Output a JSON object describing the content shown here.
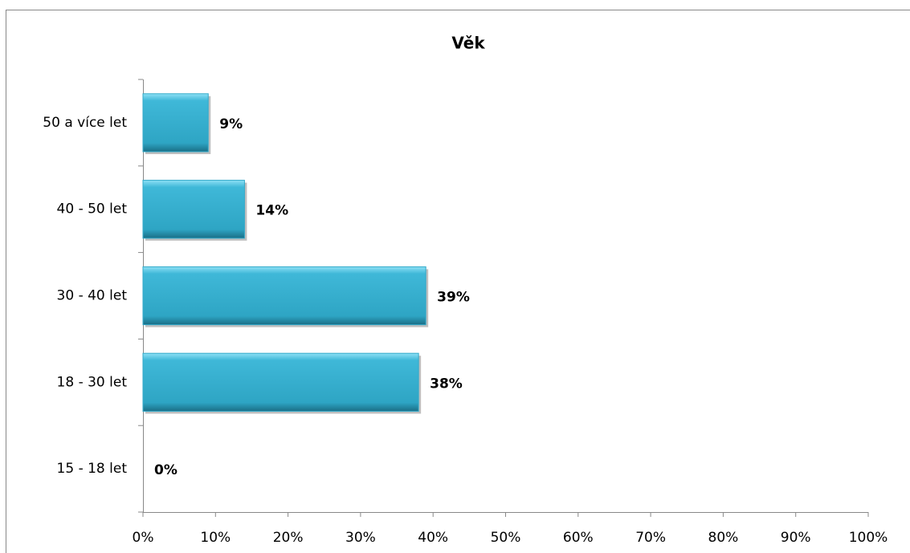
{
  "chart_data": {
    "type": "hbar",
    "title": "Věk",
    "categories": [
      "50 a více let",
      "40 - 50 let",
      "30 - 40 let",
      "18 - 30 let",
      "15 - 18 let"
    ],
    "values": [
      9,
      14,
      39,
      38,
      0
    ],
    "value_labels": [
      "9%",
      "14%",
      "39%",
      "38%",
      "0%"
    ],
    "color": "#31a9c9",
    "xlim": [
      0,
      100
    ],
    "xticks": [
      {
        "value": 0,
        "label": "0%"
      },
      {
        "value": 10,
        "label": "10%"
      },
      {
        "value": 20,
        "label": "20%"
      },
      {
        "value": 30,
        "label": "30%"
      },
      {
        "value": 40,
        "label": "40%"
      },
      {
        "value": 50,
        "label": "50%"
      },
      {
        "value": 60,
        "label": "60%"
      },
      {
        "value": 70,
        "label": "70%"
      },
      {
        "value": 80,
        "label": "80%"
      },
      {
        "value": 90,
        "label": "90%"
      },
      {
        "value": 100,
        "label": "100%"
      }
    ],
    "grid": false
  }
}
